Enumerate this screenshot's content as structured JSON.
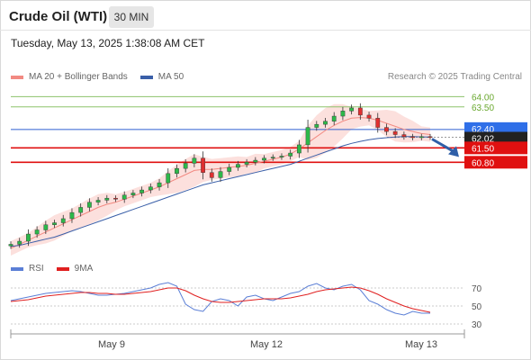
{
  "header": {
    "title": "Crude Oil (WTI)",
    "interval": "30 MIN",
    "timestamp": "Tuesday, May 13, 2025 1:38:08 AM CET"
  },
  "legend": {
    "bollinger_label": "MA 20 + Bollinger Bands",
    "bollinger_color": "#f28a82",
    "ma50_label": "MA 50",
    "ma50_color": "#3a5fa8",
    "credit": "Research © 2025 Trading Central"
  },
  "rsi_legend": {
    "rsi_label": "RSI",
    "rsi_color": "#5b7fd6",
    "ma_label": "9MA",
    "ma_color": "#e02020"
  },
  "chart_data": [
    {
      "type": "line",
      "title": "Crude Oil (WTI)",
      "series": [
        {
          "name": "Price (candlesticks)",
          "values": [
            56.8,
            56.95,
            57.3,
            57.5,
            57.75,
            57.85,
            58.05,
            58.35,
            58.6,
            58.85,
            58.95,
            59.05,
            59.0,
            59.2,
            59.3,
            59.45,
            59.6,
            59.8,
            60.25,
            60.5,
            60.75,
            61.0,
            60.3,
            60.05,
            60.35,
            60.55,
            60.7,
            60.8,
            60.9,
            61.0,
            61.05,
            61.1,
            61.25,
            61.65,
            62.5,
            62.65,
            62.8,
            63.05,
            63.3,
            63.45,
            63.1,
            62.95,
            62.5,
            62.3,
            62.15,
            62.05,
            62.0,
            62.05,
            62.02
          ]
        },
        {
          "name": "MA 20",
          "values": [
            56.6,
            56.8,
            57.0,
            57.2,
            57.4,
            57.6,
            57.8,
            58.0,
            58.2,
            58.4,
            58.6,
            58.75,
            58.85,
            59.0,
            59.15,
            59.3,
            59.45,
            59.6,
            59.8,
            60.0,
            60.2,
            60.4,
            60.45,
            60.45,
            60.5,
            60.55,
            60.6,
            60.65,
            60.75,
            60.85,
            60.95,
            61.05,
            61.2,
            61.45,
            61.75,
            62.05,
            62.35,
            62.6,
            62.8,
            62.95,
            62.98,
            62.95,
            62.85,
            62.7,
            62.55,
            62.4,
            62.3,
            62.2,
            62.15
          ]
        },
        {
          "name": "MA 50",
          "values": [
            56.7,
            56.75,
            56.85,
            56.95,
            57.05,
            57.15,
            57.3,
            57.45,
            57.6,
            57.75,
            57.9,
            58.05,
            58.2,
            58.35,
            58.5,
            58.65,
            58.8,
            58.95,
            59.1,
            59.25,
            59.4,
            59.55,
            59.7,
            59.8,
            59.9,
            60.0,
            60.1,
            60.2,
            60.3,
            60.4,
            60.5,
            60.6,
            60.7,
            60.85,
            61.0,
            61.15,
            61.3,
            61.45,
            61.6,
            61.72,
            61.82,
            61.9,
            61.96,
            62.0,
            62.03,
            62.05,
            62.05,
            62.04,
            62.03
          ]
        }
      ],
      "resistance_levels": [
        64.0,
        63.5,
        62.4
      ],
      "support_levels": [
        61.5,
        60.8
      ],
      "current_price": 62.02,
      "price_labels": [
        "64.00",
        "63.50",
        "62.40",
        "62.02",
        "61.50",
        "60.80"
      ],
      "ylim": [
        56.6,
        64.5
      ],
      "projection": "down toward 61.50"
    },
    {
      "type": "line",
      "title": "RSI",
      "series": [
        {
          "name": "RSI",
          "values": [
            56,
            58,
            60,
            62,
            64,
            65,
            66,
            67,
            66,
            64,
            62,
            62,
            63,
            64,
            66,
            68,
            70,
            74,
            76,
            72,
            52,
            46,
            44,
            55,
            58,
            56,
            50,
            60,
            62,
            58,
            56,
            60,
            64,
            66,
            72,
            75,
            70,
            68,
            72,
            74,
            68,
            56,
            52,
            46,
            42,
            40,
            44,
            42,
            42
          ]
        },
        {
          "name": "9MA",
          "values": [
            55,
            56,
            57,
            59,
            61,
            62,
            63,
            64,
            65,
            65,
            64,
            64,
            63,
            63,
            64,
            65,
            66,
            68,
            70,
            70,
            67,
            62,
            58,
            55,
            54,
            54,
            55,
            56,
            57,
            58,
            58,
            58,
            59,
            61,
            63,
            66,
            68,
            69,
            70,
            71,
            70,
            67,
            63,
            58,
            54,
            50,
            47,
            45,
            43
          ]
        }
      ],
      "levels": [
        70,
        50,
        30
      ],
      "ylim": [
        20,
        80
      ]
    }
  ],
  "xaxis": {
    "labels": [
      "May 9",
      "May 12",
      "May 13"
    ]
  }
}
